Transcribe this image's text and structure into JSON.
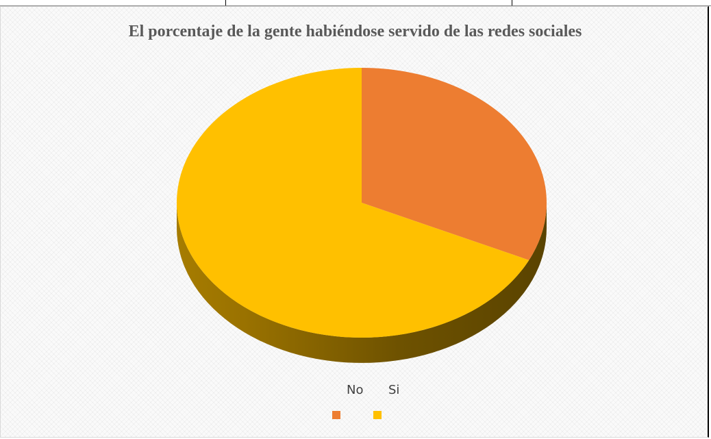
{
  "chart_data": {
    "type": "pie",
    "title": "El porcentaje de la gente habiéndose servido de las redes sociales",
    "style": "3d",
    "categories": [
      "No",
      "Si"
    ],
    "values": [
      32,
      68
    ],
    "colors": [
      "#ed7d31",
      "#ffc000"
    ],
    "legend": {
      "placement": "bottom",
      "labels": [
        "No",
        "Si"
      ]
    }
  }
}
